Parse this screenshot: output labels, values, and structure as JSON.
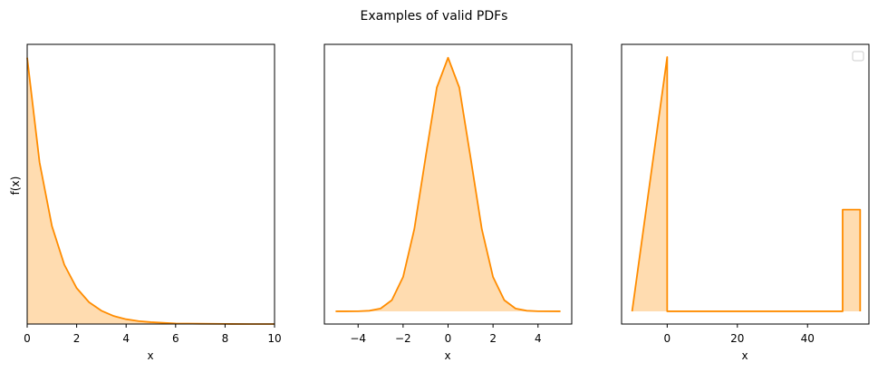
{
  "chart_data": [
    {
      "type": "area",
      "suptitle": "Examples of valid PDFs",
      "xlabel": "x",
      "ylabel": "f(x)",
      "xlim": [
        0,
        10
      ],
      "ylim": [
        0,
        1.05
      ],
      "xticks": [
        0,
        2,
        4,
        6,
        8,
        10
      ],
      "xtick_labels": [
        "0",
        "2",
        "4",
        "6",
        "8",
        "10"
      ],
      "yticks_shown": false,
      "series": [
        {
          "x": [
            0,
            0.5,
            1,
            1.5,
            2,
            2.5,
            3,
            3.5,
            4,
            4.5,
            5,
            6,
            7,
            8,
            9,
            10
          ],
          "y": [
            1.0,
            0.607,
            0.368,
            0.223,
            0.135,
            0.082,
            0.05,
            0.03,
            0.018,
            0.011,
            0.007,
            0.002,
            0.001,
            0.0003,
            0.0001,
            0.0
          ]
        }
      ],
      "color": "#ff8c00",
      "fill_color": "#ffdcb0"
    },
    {
      "type": "area",
      "xlabel": "x",
      "xlim": [
        -5.5,
        5.5
      ],
      "ylim": [
        -0.02,
        0.42
      ],
      "xticks": [
        -4,
        -2,
        0,
        2,
        4
      ],
      "xtick_labels": [
        "−4",
        "−2",
        "0",
        "2",
        "4"
      ],
      "yticks_shown": false,
      "series": [
        {
          "x": [
            -5,
            -4,
            -3.5,
            -3,
            -2.5,
            -2,
            -1.5,
            -1,
            -0.5,
            0,
            0.5,
            1,
            1.5,
            2,
            2.5,
            3,
            3.5,
            4,
            5
          ],
          "y": [
            0.0,
            0.0001,
            0.0009,
            0.0044,
            0.0175,
            0.054,
            0.1295,
            0.242,
            0.352,
            0.399,
            0.352,
            0.242,
            0.1295,
            0.054,
            0.0175,
            0.0044,
            0.0009,
            0.0001,
            0.0
          ]
        }
      ],
      "color": "#ff8c00",
      "fill_color": "#ffdcb0"
    },
    {
      "type": "area",
      "xlabel": "x",
      "xlim": [
        -13,
        57.5
      ],
      "ylim": [
        -0.005,
        0.105
      ],
      "xticks": [
        0,
        20,
        40
      ],
      "xtick_labels": [
        "0",
        "20",
        "40"
      ],
      "yticks_shown": false,
      "legend": "top-right",
      "series": [
        {
          "x": [
            -10,
            0,
            0,
            50,
            50,
            55,
            55
          ],
          "y": [
            0.0,
            0.1,
            0.0,
            0.0,
            0.04,
            0.04,
            0.0
          ]
        }
      ],
      "color": "#ff8c00",
      "fill_color": "#ffdcb0"
    }
  ]
}
